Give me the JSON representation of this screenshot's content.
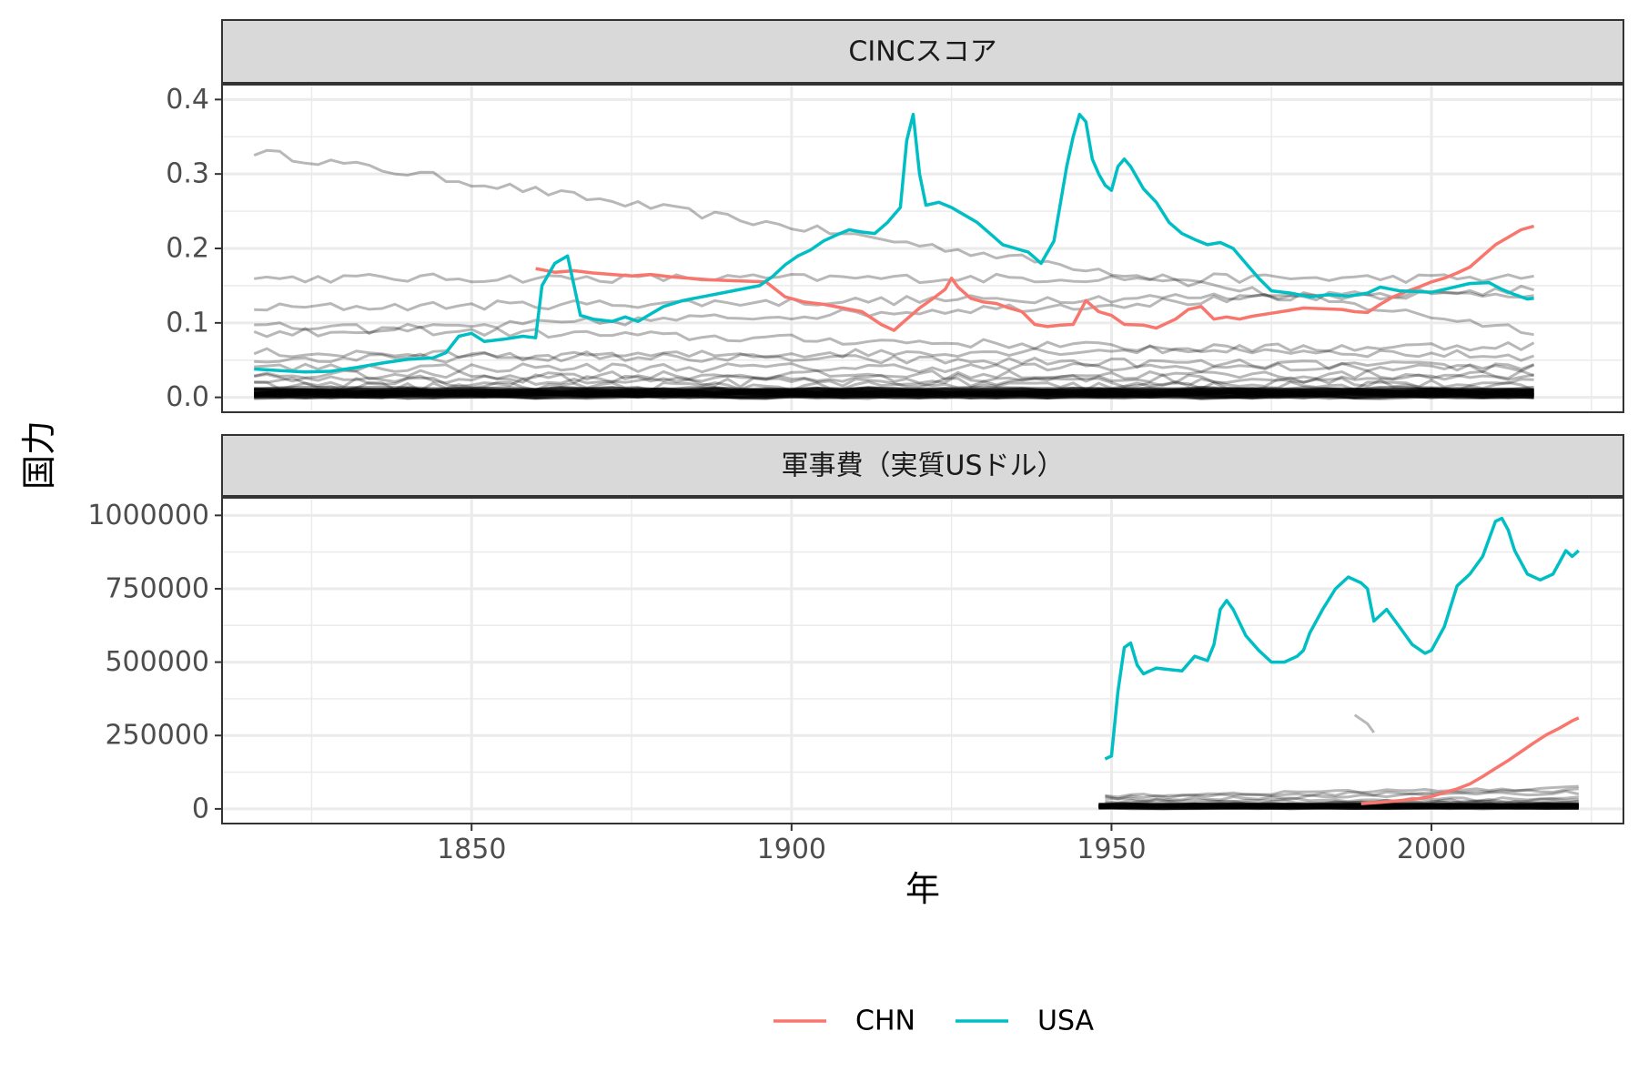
{
  "chart_data": {
    "type": "line",
    "xlabel": "年",
    "ylabel": "国力",
    "xlim": [
      1811,
      2030
    ],
    "x_ticks": [
      1850,
      1900,
      1950,
      2000
    ],
    "grid": true,
    "legend_position": "bottom",
    "legend": [
      {
        "name": "CHN",
        "color": "#F8766D"
      },
      {
        "name": "USA",
        "color": "#00BFC4"
      }
    ],
    "background_series_color": "#000000",
    "panels": [
      {
        "title": "CINCスコア",
        "ylim": [
          -0.02,
          0.42
        ],
        "y_ticks": [
          0.0,
          0.1,
          0.2,
          0.3,
          0.4
        ],
        "y_tick_labels": [
          "0.0",
          "0.1",
          "0.2",
          "0.3",
          "0.4"
        ],
        "series": [
          {
            "name": "CHN",
            "color": "#F8766D",
            "points": [
              [
                1860,
                0.173
              ],
              [
                1863,
                0.168
              ],
              [
                1866,
                0.17
              ],
              [
                1869,
                0.167
              ],
              [
                1872,
                0.165
              ],
              [
                1875,
                0.163
              ],
              [
                1878,
                0.165
              ],
              [
                1881,
                0.162
              ],
              [
                1884,
                0.16
              ],
              [
                1887,
                0.158
              ],
              [
                1890,
                0.157
              ],
              [
                1893,
                0.156
              ],
              [
                1896,
                0.155
              ],
              [
                1899,
                0.135
              ],
              [
                1902,
                0.128
              ],
              [
                1905,
                0.125
              ],
              [
                1908,
                0.12
              ],
              [
                1911,
                0.115
              ],
              [
                1914,
                0.098
              ],
              [
                1916,
                0.09
              ],
              [
                1918,
                0.105
              ],
              [
                1920,
                0.12
              ],
              [
                1922,
                0.132
              ],
              [
                1924,
                0.145
              ],
              [
                1925,
                0.16
              ],
              [
                1926,
                0.148
              ],
              [
                1928,
                0.133
              ],
              [
                1930,
                0.128
              ],
              [
                1932,
                0.126
              ],
              [
                1934,
                0.12
              ],
              [
                1936,
                0.115
              ],
              [
                1938,
                0.098
              ],
              [
                1940,
                0.095
              ],
              [
                1942,
                0.097
              ],
              [
                1944,
                0.098
              ],
              [
                1946,
                0.13
              ],
              [
                1948,
                0.115
              ],
              [
                1950,
                0.11
              ],
              [
                1952,
                0.098
              ],
              [
                1955,
                0.097
              ],
              [
                1957,
                0.093
              ],
              [
                1960,
                0.105
              ],
              [
                1962,
                0.118
              ],
              [
                1964,
                0.122
              ],
              [
                1966,
                0.105
              ],
              [
                1968,
                0.108
              ],
              [
                1970,
                0.105
              ],
              [
                1972,
                0.109
              ],
              [
                1975,
                0.113
              ],
              [
                1978,
                0.117
              ],
              [
                1980,
                0.12
              ],
              [
                1983,
                0.119
              ],
              [
                1986,
                0.118
              ],
              [
                1988,
                0.115
              ],
              [
                1990,
                0.114
              ],
              [
                1992,
                0.125
              ],
              [
                1994,
                0.135
              ],
              [
                1996,
                0.142
              ],
              [
                1998,
                0.148
              ],
              [
                2000,
                0.155
              ],
              [
                2002,
                0.16
              ],
              [
                2004,
                0.167
              ],
              [
                2006,
                0.175
              ],
              [
                2008,
                0.19
              ],
              [
                2010,
                0.205
              ],
              [
                2012,
                0.215
              ],
              [
                2014,
                0.225
              ],
              [
                2016,
                0.23
              ]
            ]
          },
          {
            "name": "USA",
            "color": "#00BFC4",
            "points": [
              [
                1816,
                0.038
              ],
              [
                1820,
                0.036
              ],
              [
                1824,
                0.034
              ],
              [
                1828,
                0.035
              ],
              [
                1832,
                0.04
              ],
              [
                1836,
                0.046
              ],
              [
                1840,
                0.051
              ],
              [
                1844,
                0.053
              ],
              [
                1846,
                0.06
              ],
              [
                1848,
                0.082
              ],
              [
                1850,
                0.086
              ],
              [
                1852,
                0.075
              ],
              [
                1855,
                0.078
              ],
              [
                1858,
                0.082
              ],
              [
                1860,
                0.08
              ],
              [
                1861,
                0.15
              ],
              [
                1863,
                0.18
              ],
              [
                1865,
                0.19
              ],
              [
                1866,
                0.15
              ],
              [
                1867,
                0.11
              ],
              [
                1869,
                0.105
              ],
              [
                1872,
                0.102
              ],
              [
                1874,
                0.108
              ],
              [
                1876,
                0.102
              ],
              [
                1878,
                0.112
              ],
              [
                1880,
                0.122
              ],
              [
                1883,
                0.13
              ],
              [
                1886,
                0.135
              ],
              [
                1889,
                0.14
              ],
              [
                1892,
                0.145
              ],
              [
                1895,
                0.15
              ],
              [
                1897,
                0.162
              ],
              [
                1899,
                0.178
              ],
              [
                1901,
                0.19
              ],
              [
                1903,
                0.198
              ],
              [
                1905,
                0.21
              ],
              [
                1907,
                0.218
              ],
              [
                1909,
                0.225
              ],
              [
                1911,
                0.222
              ],
              [
                1913,
                0.22
              ],
              [
                1915,
                0.235
              ],
              [
                1917,
                0.255
              ],
              [
                1918,
                0.345
              ],
              [
                1919,
                0.38
              ],
              [
                1920,
                0.3
              ],
              [
                1921,
                0.258
              ],
              [
                1923,
                0.262
              ],
              [
                1925,
                0.255
              ],
              [
                1927,
                0.245
              ],
              [
                1929,
                0.235
              ],
              [
                1931,
                0.22
              ],
              [
                1933,
                0.205
              ],
              [
                1935,
                0.2
              ],
              [
                1937,
                0.195
              ],
              [
                1939,
                0.18
              ],
              [
                1941,
                0.21
              ],
              [
                1943,
                0.31
              ],
              [
                1944,
                0.35
              ],
              [
                1945,
                0.38
              ],
              [
                1946,
                0.37
              ],
              [
                1947,
                0.32
              ],
              [
                1948,
                0.3
              ],
              [
                1949,
                0.285
              ],
              [
                1950,
                0.278
              ],
              [
                1951,
                0.31
              ],
              [
                1952,
                0.32
              ],
              [
                1953,
                0.31
              ],
              [
                1955,
                0.28
              ],
              [
                1957,
                0.262
              ],
              [
                1959,
                0.235
              ],
              [
                1961,
                0.22
              ],
              [
                1963,
                0.212
              ],
              [
                1965,
                0.205
              ],
              [
                1967,
                0.208
              ],
              [
                1969,
                0.2
              ],
              [
                1971,
                0.18
              ],
              [
                1973,
                0.16
              ],
              [
                1975,
                0.143
              ],
              [
                1978,
                0.14
              ],
              [
                1981,
                0.135
              ],
              [
                1984,
                0.138
              ],
              [
                1987,
                0.136
              ],
              [
                1990,
                0.14
              ],
              [
                1992,
                0.148
              ],
              [
                1995,
                0.143
              ],
              [
                1998,
                0.142
              ],
              [
                2000,
                0.141
              ],
              [
                2003,
                0.147
              ],
              [
                2006,
                0.153
              ],
              [
                2009,
                0.154
              ],
              [
                2011,
                0.145
              ],
              [
                2013,
                0.138
              ],
              [
                2015,
                0.132
              ],
              [
                2016,
                0.133
              ]
            ]
          }
        ]
      },
      {
        "title": "軍事費（実質USドル）",
        "ylim": [
          -50000,
          1060000
        ],
        "y_ticks": [
          0,
          250000,
          500000,
          750000,
          1000000
        ],
        "y_tick_labels": [
          "0",
          "250000",
          "500000",
          "750000",
          "1000000"
        ],
        "series": [
          {
            "name": "CHN",
            "color": "#F8766D",
            "points": [
              [
                1989,
                18000
              ],
              [
                1992,
                22000
              ],
              [
                1995,
                28000
              ],
              [
                1998,
                35000
              ],
              [
                2000,
                42000
              ],
              [
                2002,
                55000
              ],
              [
                2004,
                68000
              ],
              [
                2006,
                85000
              ],
              [
                2008,
                110000
              ],
              [
                2010,
                138000
              ],
              [
                2012,
                165000
              ],
              [
                2014,
                195000
              ],
              [
                2016,
                225000
              ],
              [
                2018,
                253000
              ],
              [
                2020,
                275000
              ],
              [
                2022,
                300000
              ],
              [
                2023,
                310000
              ]
            ]
          },
          {
            "name": "USA",
            "color": "#00BFC4",
            "points": [
              [
                1949,
                170000
              ],
              [
                1950,
                180000
              ],
              [
                1951,
                400000
              ],
              [
                1952,
                550000
              ],
              [
                1953,
                565000
              ],
              [
                1954,
                490000
              ],
              [
                1955,
                460000
              ],
              [
                1957,
                480000
              ],
              [
                1959,
                475000
              ],
              [
                1961,
                470000
              ],
              [
                1963,
                520000
              ],
              [
                1965,
                505000
              ],
              [
                1966,
                560000
              ],
              [
                1967,
                680000
              ],
              [
                1968,
                710000
              ],
              [
                1969,
                680000
              ],
              [
                1971,
                590000
              ],
              [
                1973,
                540000
              ],
              [
                1975,
                500000
              ],
              [
                1977,
                500000
              ],
              [
                1979,
                520000
              ],
              [
                1980,
                540000
              ],
              [
                1981,
                600000
              ],
              [
                1983,
                680000
              ],
              [
                1985,
                750000
              ],
              [
                1987,
                790000
              ],
              [
                1989,
                770000
              ],
              [
                1990,
                750000
              ],
              [
                1991,
                640000
              ],
              [
                1993,
                680000
              ],
              [
                1995,
                620000
              ],
              [
                1997,
                560000
              ],
              [
                1999,
                530000
              ],
              [
                2000,
                540000
              ],
              [
                2002,
                620000
              ],
              [
                2004,
                760000
              ],
              [
                2006,
                800000
              ],
              [
                2008,
                860000
              ],
              [
                2010,
                980000
              ],
              [
                2011,
                990000
              ],
              [
                2012,
                950000
              ],
              [
                2013,
                880000
              ],
              [
                2015,
                800000
              ],
              [
                2017,
                780000
              ],
              [
                2019,
                800000
              ],
              [
                2021,
                880000
              ],
              [
                2022,
                860000
              ],
              [
                2023,
                880000
              ]
            ]
          }
        ]
      }
    ]
  }
}
